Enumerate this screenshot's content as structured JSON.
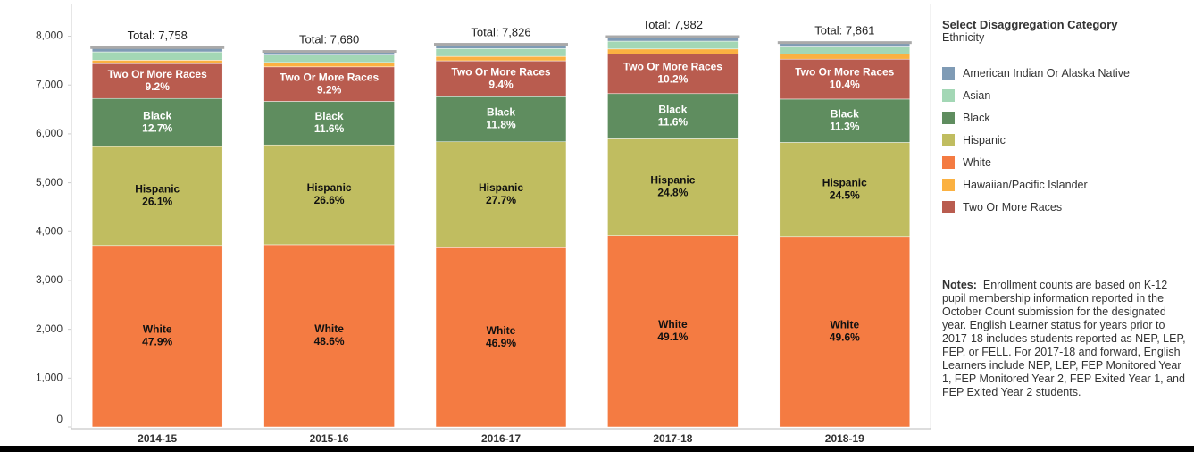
{
  "chart_data": {
    "type": "stacked-bar",
    "categories": [
      "2014-15",
      "2015-16",
      "2016-17",
      "2017-18",
      "2018-19"
    ],
    "total_labels": [
      "Total: 7,758",
      "Total: 7,680",
      "Total: 7,826",
      "Total: 7,982",
      "Total: 7,861"
    ],
    "series": [
      {
        "name": "American Indian Or Alaska Native",
        "color": "#7f9bb5",
        "values": [
          78,
          67,
          79,
          83,
          80
        ]
      },
      {
        "name": "Asian",
        "color": "#a3d7b5",
        "values": [
          170,
          150,
          160,
          160,
          150
        ]
      },
      {
        "name": "Black",
        "color": "#5f8d5f",
        "label_color": "#ffffff",
        "values": [
          985,
          891,
          923,
          926,
          888
        ],
        "value_labels": [
          "12.7%",
          "11.6%",
          "11.8%",
          "11.6%",
          "11.3%"
        ]
      },
      {
        "name": "Hispanic",
        "color": "#c0bd60",
        "label_color": "#111111",
        "values": [
          2025,
          2043,
          2168,
          1980,
          1926
        ],
        "value_labels": [
          "26.1%",
          "26.6%",
          "27.7%",
          "24.8%",
          "24.5%"
        ]
      },
      {
        "name": "White",
        "color": "#f47b42",
        "label_color": "#111111",
        "values": [
          3716,
          3732,
          3670,
          3919,
          3899
        ],
        "value_labels": [
          "47.9%",
          "48.6%",
          "46.9%",
          "49.1%",
          "49.6%"
        ]
      },
      {
        "name": "Hawaiian/Pacific Islander",
        "color": "#fbb141",
        "values": [
          70,
          90,
          90,
          100,
          100
        ]
      },
      {
        "name": "Two Or More Races",
        "color": "#b95c4f",
        "label_color": "#ffffff",
        "values": [
          714,
          707,
          736,
          814,
          818
        ],
        "value_labels": [
          "9.2%",
          "9.2%",
          "9.4%",
          "10.2%",
          "10.4%"
        ]
      }
    ],
    "ylim": [
      0,
      8650
    ],
    "yticks": [
      0,
      {
        "value": 1000,
        "label": "1,000"
      },
      {
        "value": 2000,
        "label": "2,000"
      },
      {
        "value": 3000,
        "label": "3,000"
      },
      {
        "value": 4000,
        "label": "4,000"
      },
      {
        "value": 5000,
        "label": "5,000"
      },
      {
        "value": 6000,
        "label": "6,000"
      },
      {
        "value": 7000,
        "label": "7,000"
      },
      {
        "value": 8000,
        "label": "8,000"
      }
    ],
    "legend_title": "Select Disaggregation Category",
    "legend_subtitle": "Ethnicity",
    "notes_label": "Notes:",
    "notes": "Enrollment counts are based on K-12 pupil membership information reported in the October Count submission for the designated year. English Learner status for years prior to 2017-18 includes students reported as NEP, LEP, FEP, or FELL. For 2017-18 and forward, English Learners include NEP, LEP,  FEP Monitored Year 1, FEP Monitored Year 2, FEP Exited Year 1, and FEP Exited Year 2 students."
  }
}
